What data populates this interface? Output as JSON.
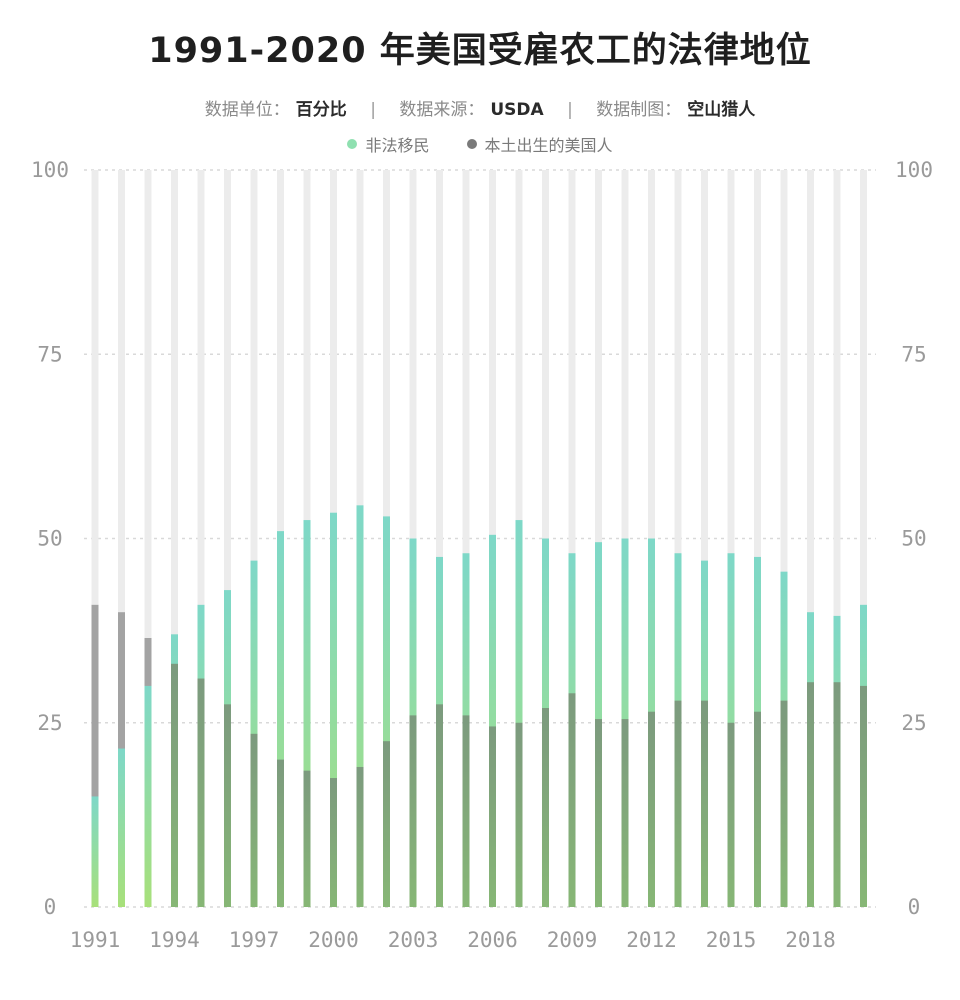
{
  "title": "1991-2020 年美国受雇农工的法律地位",
  "meta": {
    "unit_label": "数据单位：",
    "unit_value": "百分比",
    "source_label": "数据来源：",
    "source_value": "USDA",
    "maker_label": "数据制图：",
    "maker_value": "空山猎人",
    "separator": "|"
  },
  "colors": {
    "background_bar": "#ececec",
    "series_1": "#7ed8c8",
    "series_1_bottom": "#a8e07a",
    "series_2": "#7c9a7e",
    "series_2_early": "#a3a3a3",
    "gridline": "#d9d9d9"
  },
  "chart_data": {
    "type": "bar",
    "stacked": true,
    "title": "1991-2020 年美国受雇农工的法律地位",
    "ylim": [
      0,
      100
    ],
    "y_ticks": [
      0,
      25,
      50,
      75,
      100
    ],
    "x_tick_labels": [
      "1991",
      "1994",
      "1997",
      "2000",
      "2003",
      "2006",
      "2009",
      "2012",
      "2015",
      "2018"
    ],
    "legend_position": "top-center",
    "categories": [
      1991,
      1992,
      1993,
      1994,
      1995,
      1996,
      1997,
      1998,
      1999,
      2000,
      2001,
      2002,
      2003,
      2004,
      2005,
      2006,
      2007,
      2008,
      2009,
      2010,
      2011,
      2012,
      2013,
      2014,
      2015,
      2016,
      2017,
      2018,
      2019,
      2020
    ],
    "series": [
      {
        "name": "非法移民",
        "values": [
          15,
          21.5,
          30,
          37,
          41,
          43,
          47,
          51,
          52.5,
          53.5,
          54.5,
          53,
          50,
          47.5,
          48,
          50.5,
          52.5,
          50,
          48,
          49.5,
          50,
          50,
          48,
          47,
          48,
          47.5,
          45.5,
          40,
          39.5,
          41
        ]
      },
      {
        "name": "本土出生的美国人",
        "values": [
          41,
          40,
          36.5,
          33,
          31,
          27.5,
          23.5,
          20,
          18.5,
          17.5,
          19,
          22.5,
          26,
          27.5,
          26,
          24.5,
          25,
          27,
          29,
          25.5,
          25.5,
          26.5,
          28,
          28,
          25,
          26.5,
          28,
          30.5,
          30.5,
          30
        ]
      }
    ]
  }
}
